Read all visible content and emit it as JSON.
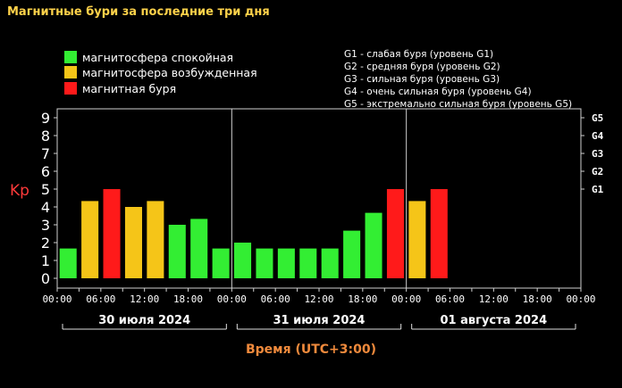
{
  "title": "Магнитные бури за последние три дня",
  "legend": [
    {
      "label": "магнитосфера спокойная",
      "color": "#33ee33"
    },
    {
      "label": "магнитосфера возбужденная",
      "color": "#f5c518"
    },
    {
      "label": "магнитная буря",
      "color": "#ff1a1a"
    }
  ],
  "storm_scale": [
    "G1 - слабая буря (уровень G1)",
    "G2 - средняя буря (уровень G2)",
    "G3 - сильная буря (уровень G3)",
    "G4 - очень сильная буря (уровень G4)",
    "G5 - экстремально сильная буря (уровень G5)"
  ],
  "chart_data": {
    "type": "bar",
    "ylabel": "Kp",
    "xlabel": "Время (UTC+3:00)",
    "ylim": [
      0,
      9
    ],
    "yticks": [
      "0",
      "1",
      "2",
      "3",
      "4",
      "5",
      "6",
      "7",
      "8",
      "9"
    ],
    "g_levels": [
      {
        "label": "G1",
        "value": 5
      },
      {
        "label": "G2",
        "value": 6
      },
      {
        "label": "G3",
        "value": 7
      },
      {
        "label": "G4",
        "value": 8
      },
      {
        "label": "G5",
        "value": 9
      }
    ],
    "days": [
      "30 июля 2024",
      "31 июля 2024",
      "01 августа 2024"
    ],
    "time_ticks": [
      "00:00",
      "06:00",
      "12:00",
      "18:00"
    ],
    "end_tick": "00:00",
    "values": [
      1.67,
      4.33,
      5.0,
      4.0,
      4.33,
      3.0,
      3.33,
      1.67,
      2.0,
      1.67,
      1.67,
      1.67,
      1.67,
      2.67,
      3.67,
      5.0,
      4.33,
      5.0,
      null,
      null,
      null,
      null,
      null,
      null
    ],
    "colors": [
      "#33ee33",
      "#f5c518",
      "#ff1a1a",
      "#f5c518",
      "#f5c518",
      "#33ee33",
      "#33ee33",
      "#33ee33",
      "#33ee33",
      "#33ee33",
      "#33ee33",
      "#33ee33",
      "#33ee33",
      "#33ee33",
      "#33ee33",
      "#ff1a1a",
      "#f5c518",
      "#ff1a1a",
      null,
      null,
      null,
      null,
      null,
      null
    ]
  }
}
